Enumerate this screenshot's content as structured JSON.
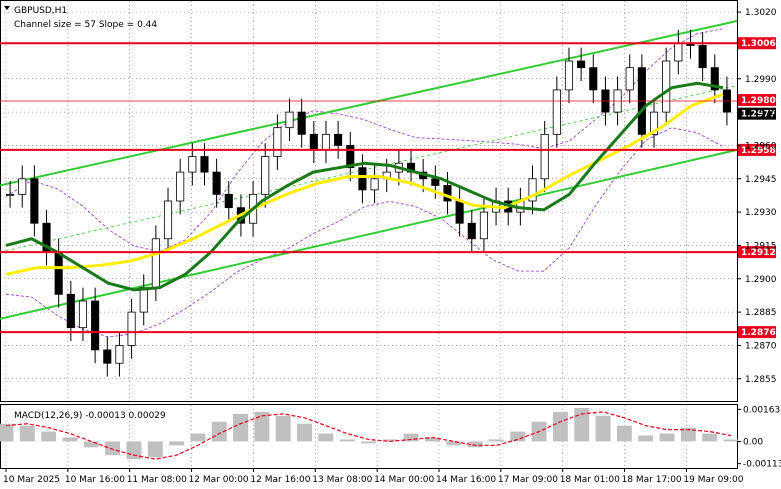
{
  "chart_data": {
    "type": "line",
    "symbol_label": "GBPUSD,H1",
    "channel_label": "Channel size = 57 Slope = 0.44",
    "macd_label": "MACD(12,26,9) -0.00013 0.00029",
    "ylim": [
      1.2845,
      1.3025
    ],
    "y_ticks": [
      "1.3020",
      "1.2990",
      "1.2975",
      "1.2960",
      "1.2945",
      "1.2930",
      "1.2915",
      "1.2900",
      "1.2885",
      "1.2870",
      "1.2855"
    ],
    "x_ticks": [
      "10 Mar 2025",
      "10 Mar 16:00",
      "11 Mar 08:00",
      "12 Mar 00:00",
      "12 Mar 16:00",
      "13 Mar 08:00",
      "14 Mar 00:00",
      "14 Mar 16:00",
      "17 Mar 09:00",
      "18 Mar 01:00",
      "18 Mar 17:00",
      "19 Mar 09:00"
    ],
    "levels": [
      {
        "value": 1.3006,
        "label": "1.3006"
      },
      {
        "value": 1.2958,
        "label": "1.2958"
      },
      {
        "value": 1.2912,
        "label": "1.2912"
      },
      {
        "value": 1.2876,
        "label": "1.2876"
      }
    ],
    "price_labels": [
      {
        "value": 1.298,
        "label": "1.2980"
      },
      {
        "value": 1.2977,
        "label": "1.2977"
      }
    ],
    "macd_ticks": [
      "0.00163",
      "0.00",
      "-0.00113"
    ],
    "macd_ylim": [
      -0.0013,
      0.0018
    ],
    "series": [
      {
        "name": "price",
        "values": [
          1.2938,
          1.2945,
          1.2925,
          1.2912,
          1.2893,
          1.2878,
          1.289,
          1.2868,
          1.2862,
          1.287,
          1.2885,
          1.2896,
          1.2918,
          1.2935,
          1.2948,
          1.2955,
          1.2948,
          1.2938,
          1.2932,
          1.2925,
          1.2938,
          1.2955,
          1.2968,
          1.2975,
          1.2965,
          1.2958,
          1.2965,
          1.296,
          1.295,
          1.294,
          1.2945,
          1.2948,
          1.2952,
          1.2948,
          1.2945,
          1.2942,
          1.2935,
          1.2925,
          1.2918,
          1.293,
          1.2935,
          1.293,
          1.2935,
          1.2945,
          1.2965,
          1.2985,
          1.2998,
          1.2995,
          1.2985,
          1.2975,
          1.2985,
          1.2995,
          1.2965,
          1.2975,
          1.2998,
          1.3006,
          1.3005,
          1.2995,
          1.2985,
          1.2975
        ]
      },
      {
        "name": "ma-fast",
        "values": [
          1.2915,
          1.2918,
          1.2912,
          1.2905,
          1.2898,
          1.2895,
          1.2896,
          1.2902,
          1.2912,
          1.2925,
          1.2935,
          1.2942,
          1.2948,
          1.295,
          1.2952,
          1.2951,
          1.2948,
          1.2945,
          1.294,
          1.2935,
          1.2932,
          1.2931,
          1.2938,
          1.2952,
          1.2965,
          1.2978,
          1.2986,
          1.2988,
          1.2986
        ]
      },
      {
        "name": "ma-slow",
        "values": [
          1.2902,
          1.2905,
          1.2905,
          1.2906,
          1.2908,
          1.2912,
          1.2918,
          1.2925,
          1.2932,
          1.2938,
          1.2943,
          1.2946,
          1.2946,
          1.2943,
          1.2938,
          1.2933,
          1.2932,
          1.2938,
          1.2946,
          1.2953,
          1.296,
          1.2968,
          1.2978,
          1.2983
        ]
      },
      {
        "name": "channel-upper",
        "values": [
          1.2942,
          1.3016
        ]
      },
      {
        "name": "channel-lower",
        "values": [
          1.2882,
          1.2958
        ]
      },
      {
        "name": "channel-mid",
        "values": [
          1.2912,
          1.2987
        ]
      },
      {
        "name": "macd",
        "values": [
          0.0009,
          0.0008,
          0.0005,
          0.0002,
          -0.0003,
          -0.0007,
          -0.0009,
          -0.0008,
          -0.0002,
          0.0004,
          0.001,
          0.0014,
          0.0015,
          0.0013,
          0.0009,
          0.0004,
          0.0001,
          -0.0001,
          0.0001,
          0.0004,
          0.0002,
          -0.0002,
          -0.0003,
          0.0001,
          0.0005,
          0.001,
          0.0015,
          0.0017,
          0.0013,
          0.0008,
          0.0003,
          0.0004,
          0.0007,
          0.0004,
          0.0001
        ]
      },
      {
        "name": "signal",
        "values": [
          0.0008,
          0.0009,
          0.0007,
          0.0004,
          0.0,
          -0.0004,
          -0.0007,
          -0.0009,
          -0.0007,
          -0.0002,
          0.0004,
          0.0009,
          0.0013,
          0.0014,
          0.0012,
          0.0008,
          0.0004,
          0.0001,
          0.0,
          0.0001,
          0.0002,
          0.0,
          -0.0002,
          -0.0002,
          0.0001,
          0.0005,
          0.001,
          0.0014,
          0.0015,
          0.0012,
          0.0008,
          0.0006,
          0.0006,
          0.0005,
          0.0003
        ]
      }
    ]
  },
  "colors": {
    "candle": "#000000",
    "level_line": "#e8001c",
    "level_label_bg": "#e8001c",
    "channel": "#32cd32",
    "ma_fast": "#1a7a1a",
    "ma_slow": "#ffee00",
    "bands": "#9b30d9",
    "macd_hist": "#c0c0c0",
    "signal": "#e8001c",
    "price_label_bg": "#000000",
    "grid": "#000000"
  }
}
